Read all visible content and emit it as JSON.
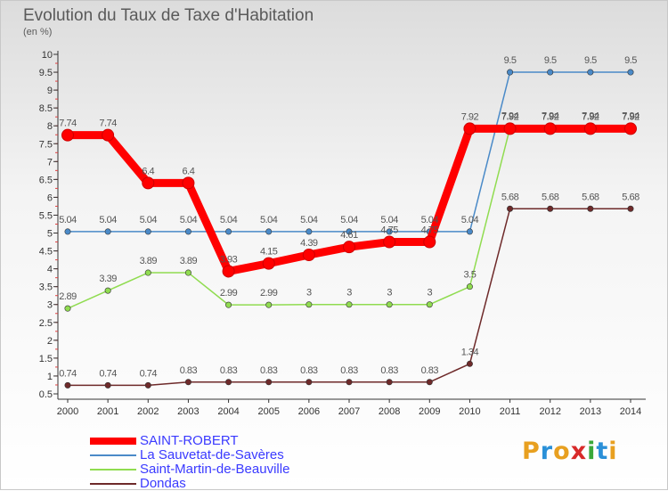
{
  "chart_data": {
    "type": "line",
    "title": "Evolution du Taux de Taxe d'Habitation",
    "unit_label": "(en %)",
    "x": [
      "2000",
      "2001",
      "2002",
      "2003",
      "2004",
      "2005",
      "2006",
      "2007",
      "2008",
      "2009",
      "2010",
      "2011",
      "2012",
      "2013",
      "2014"
    ],
    "y_ticks": [
      "0.5",
      "1",
      "1.5",
      "2",
      "2.5",
      "3",
      "3.5",
      "4",
      "4.5",
      "5",
      "5.5",
      "6",
      "6.5",
      "7",
      "7.5",
      "8",
      "8.5",
      "9",
      "9.5",
      "10"
    ],
    "ylim": [
      0.5,
      10
    ],
    "series": [
      {
        "name": "SAINT-ROBERT",
        "color": "#ff0000",
        "values": [
          7.74,
          7.74,
          6.4,
          6.4,
          3.93,
          4.15,
          4.39,
          4.61,
          4.75,
          4.75,
          7.92,
          7.92,
          7.92,
          7.92,
          7.92
        ],
        "labels": [
          "7.74",
          "7.74",
          "6.4",
          "6.4",
          "3.93",
          "4.15",
          "4.39",
          "4.61",
          "4.75",
          "4.75",
          "7.92",
          "7.92",
          "7.92",
          "7.92",
          "7.92"
        ]
      },
      {
        "name": "La Sauvetat-de-Savères",
        "color": "#4a8ac8",
        "values": [
          5.04,
          5.04,
          5.04,
          5.04,
          5.04,
          5.04,
          5.04,
          5.04,
          5.04,
          5.04,
          5.04,
          9.5,
          9.5,
          9.5,
          9.5
        ],
        "labels": [
          "5.04",
          "5.04",
          "5.04",
          "5.04",
          "5.04",
          "5.04",
          "5.04",
          "5.04",
          "5.04",
          "5.04",
          "5.04",
          "9.5",
          "9.5",
          "9.5",
          "9.5"
        ]
      },
      {
        "name": "Saint-Martin-de-Beauville",
        "color": "#90dc50",
        "values": [
          2.89,
          3.39,
          3.89,
          3.89,
          2.99,
          2.99,
          3,
          3,
          3,
          3,
          3.5,
          7.94,
          7.94,
          7.94,
          7.94
        ],
        "labels": [
          "2.89",
          "3.39",
          "3.89",
          "3.89",
          "2.99",
          "2.99",
          "3",
          "3",
          "3",
          "3",
          "3.5",
          "7.94",
          "7.94",
          "7.94",
          "7.94"
        ]
      },
      {
        "name": "Dondas",
        "color": "#6e2a2a",
        "values": [
          0.74,
          0.74,
          0.74,
          0.83,
          0.83,
          0.83,
          0.83,
          0.83,
          0.83,
          0.83,
          1.34,
          5.68,
          5.68,
          5.68,
          5.68
        ],
        "labels": [
          "0.74",
          "0.74",
          "0.74",
          "0.83",
          "0.83",
          "0.83",
          "0.83",
          "0.83",
          "0.83",
          "0.83",
          "1.34",
          "5.68",
          "5.68",
          "5.68",
          "5.68"
        ]
      }
    ],
    "grid": false,
    "legend_position": "bottom-left"
  },
  "logo": {
    "letters": [
      "P",
      "r",
      "o",
      "x",
      "i",
      "t",
      "i"
    ],
    "colors": [
      "#e8a020",
      "#2a90d8",
      "#e8a020",
      "#d82a2a",
      "#3aa83a",
      "#2a90d8",
      "#e8a020"
    ]
  }
}
